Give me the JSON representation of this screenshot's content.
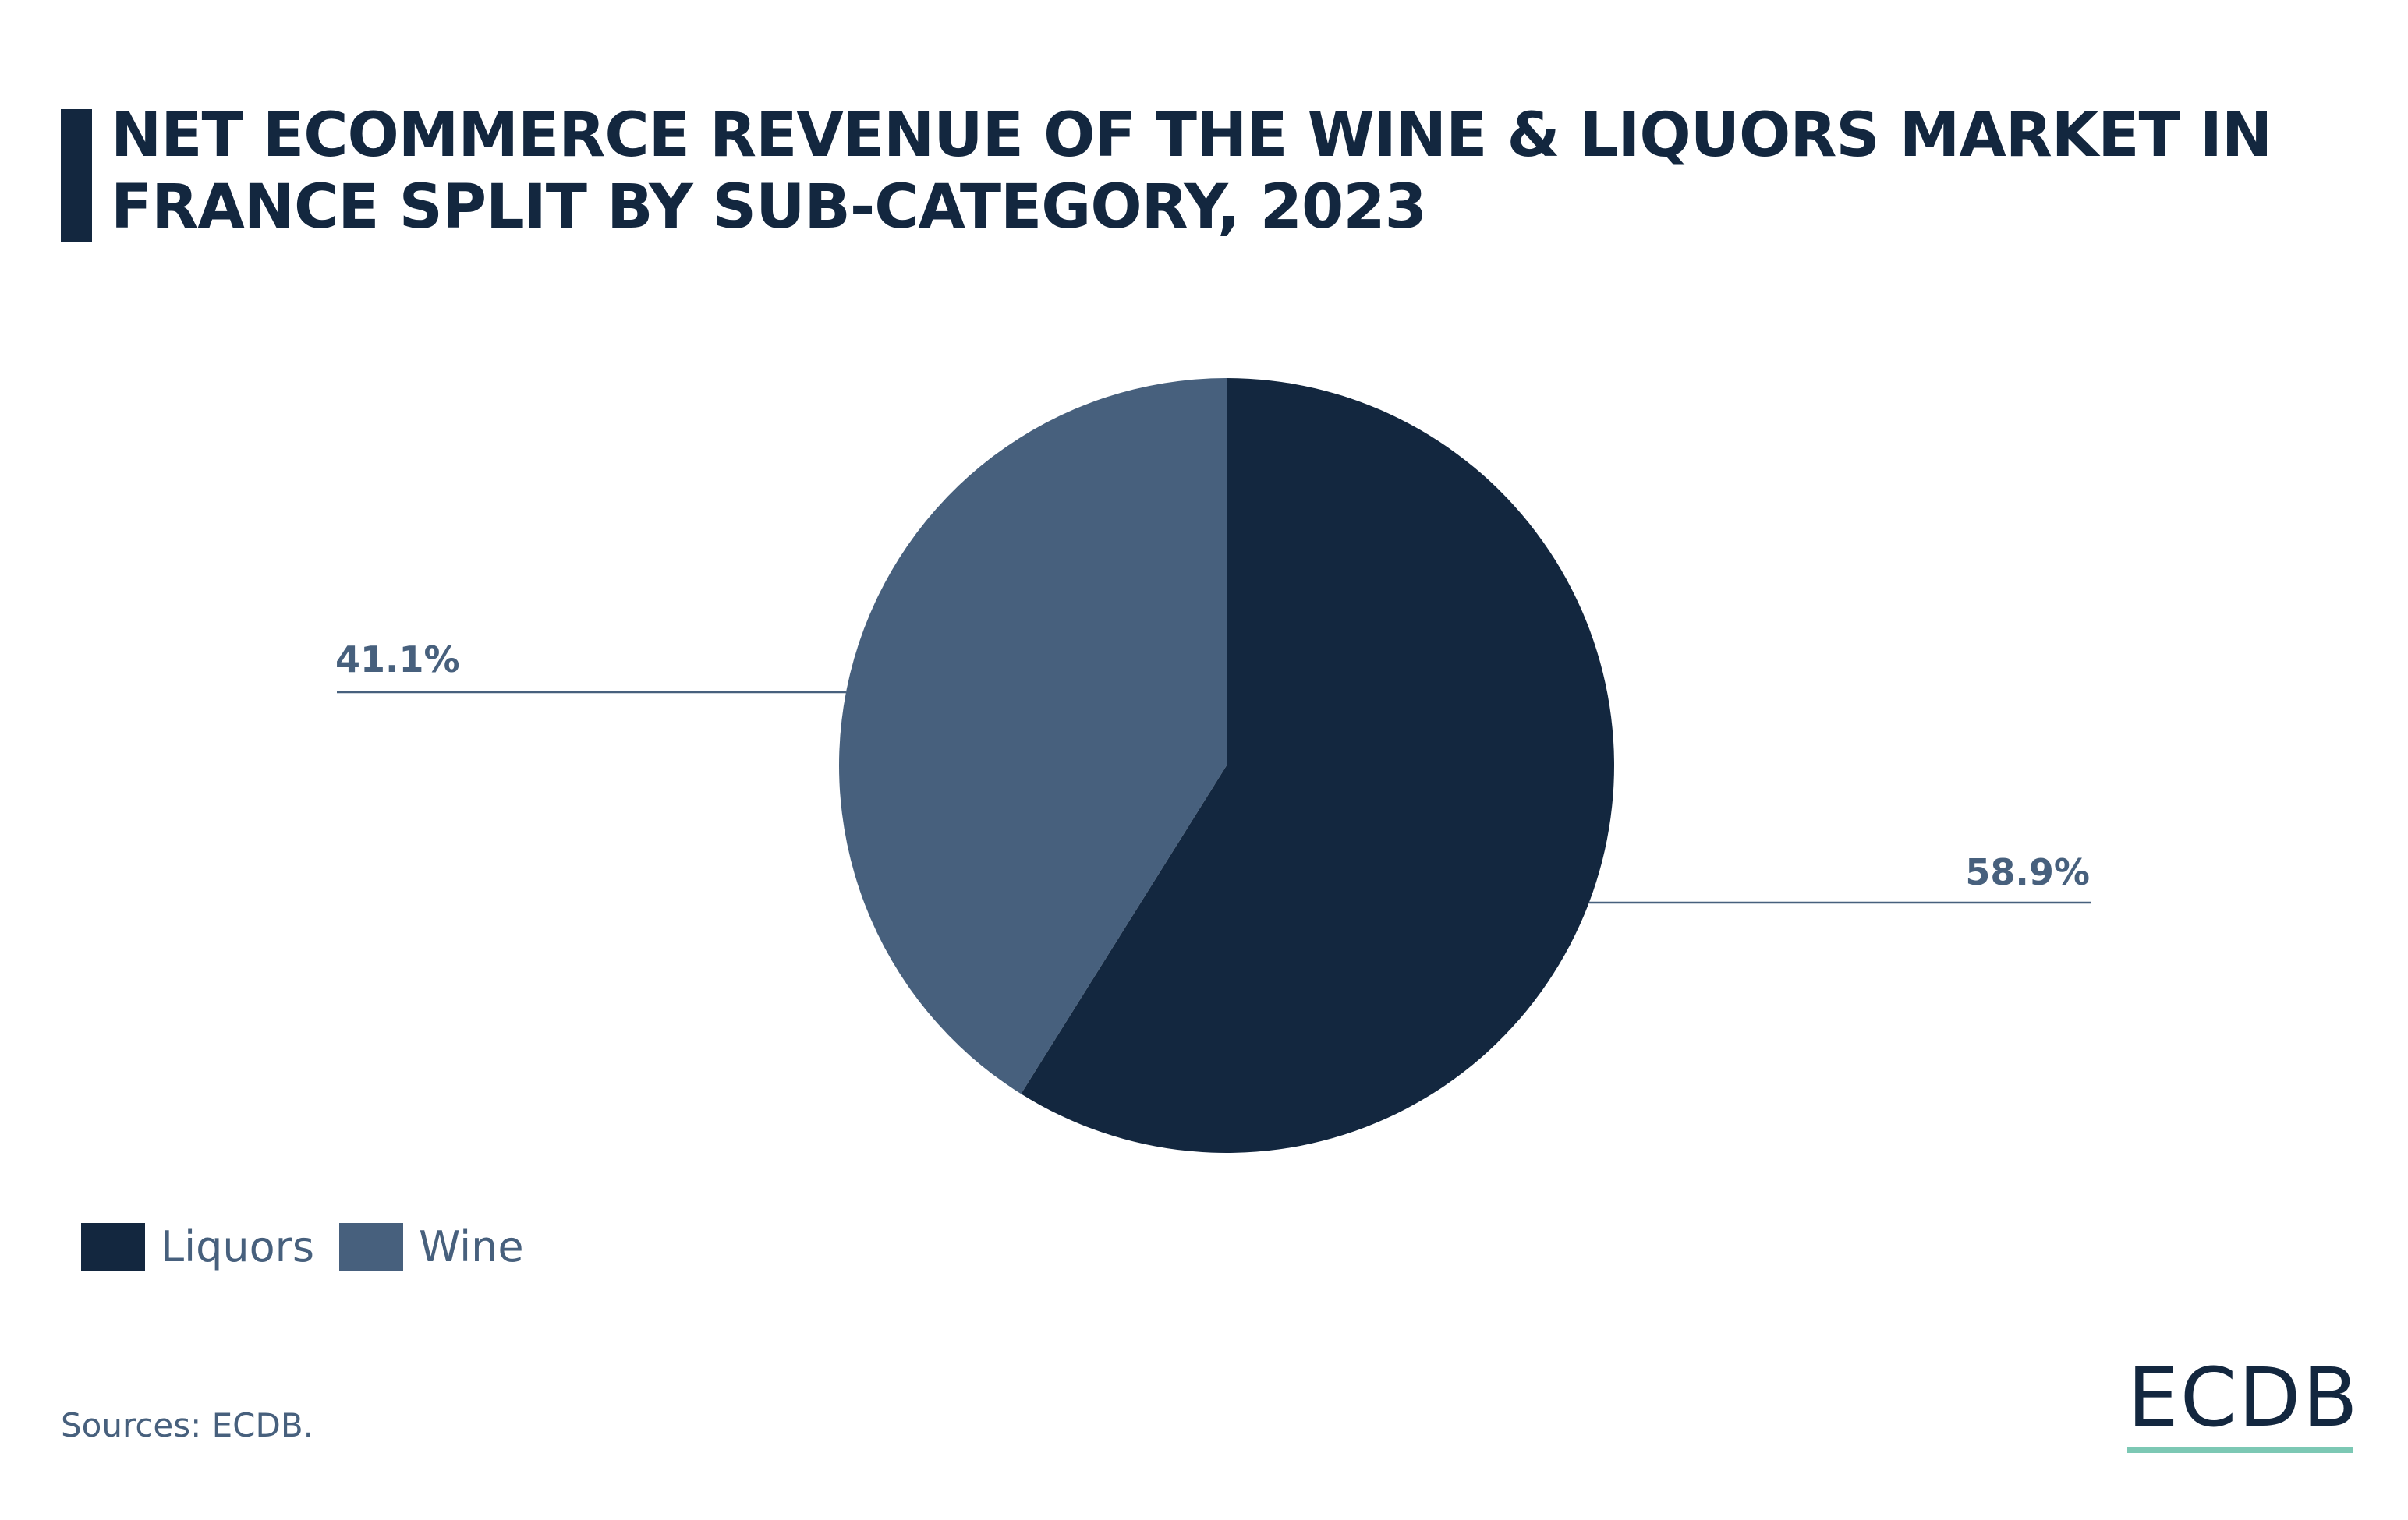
{
  "title": "NET ECOMMERCE REVENUE OF THE WINE & LIQUORS MARKET IN FRANCE SPLIT BY SUB-CATEGORY, 2023",
  "colors": {
    "title": "#13273f",
    "liquors": "#13273f",
    "wine": "#47607d",
    "label_text": "#47607d",
    "logo_underline": "#7cc8b4"
  },
  "chart_data": {
    "type": "pie",
    "title": "NET ECOMMERCE REVENUE OF THE WINE & LIQUORS MARKET IN FRANCE SPLIT BY SUB-CATEGORY, 2023",
    "start_angle": "12 o'clock",
    "direction": "clockwise",
    "slices": [
      {
        "name": "Liquors",
        "value": 58.9,
        "label": "58.9%",
        "color": "#13273f"
      },
      {
        "name": "Wine",
        "value": 41.1,
        "label": "41.1%",
        "color": "#47607d"
      }
    ],
    "legend": {
      "position": "bottom-left",
      "entries": [
        "Liquors",
        "Wine"
      ]
    }
  },
  "sources": "Sources: ECDB.",
  "logo": {
    "text": "ECDB"
  }
}
